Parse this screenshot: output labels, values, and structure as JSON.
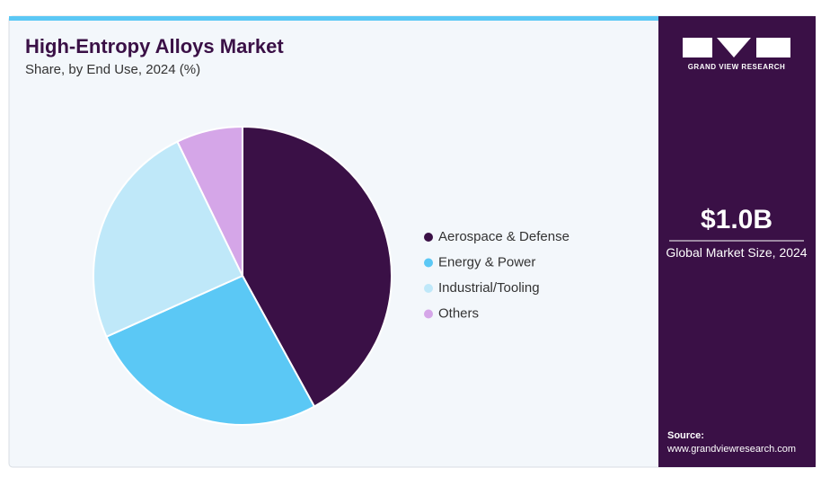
{
  "chart_data": {
    "type": "pie",
    "title": "High-Entropy Alloys Market",
    "subtitle": "Share, by End Use, 2024 (%)",
    "categories": [
      "Aerospace & Defense",
      "Energy & Power",
      "Industrial/Tooling",
      "Others"
    ],
    "values": [
      42.0,
      26.3,
      24.5,
      7.2
    ],
    "colors": [
      "#3a1046",
      "#5bc8f5",
      "#bfe8f9",
      "#d5a6e8"
    ]
  },
  "sidebar": {
    "brand": "GRAND VIEW RESEARCH",
    "market_size": "$1.0B",
    "market_size_label": "Global Market Size, 2024",
    "source_label": "Source:",
    "source_url": "www.grandviewresearch.com"
  }
}
